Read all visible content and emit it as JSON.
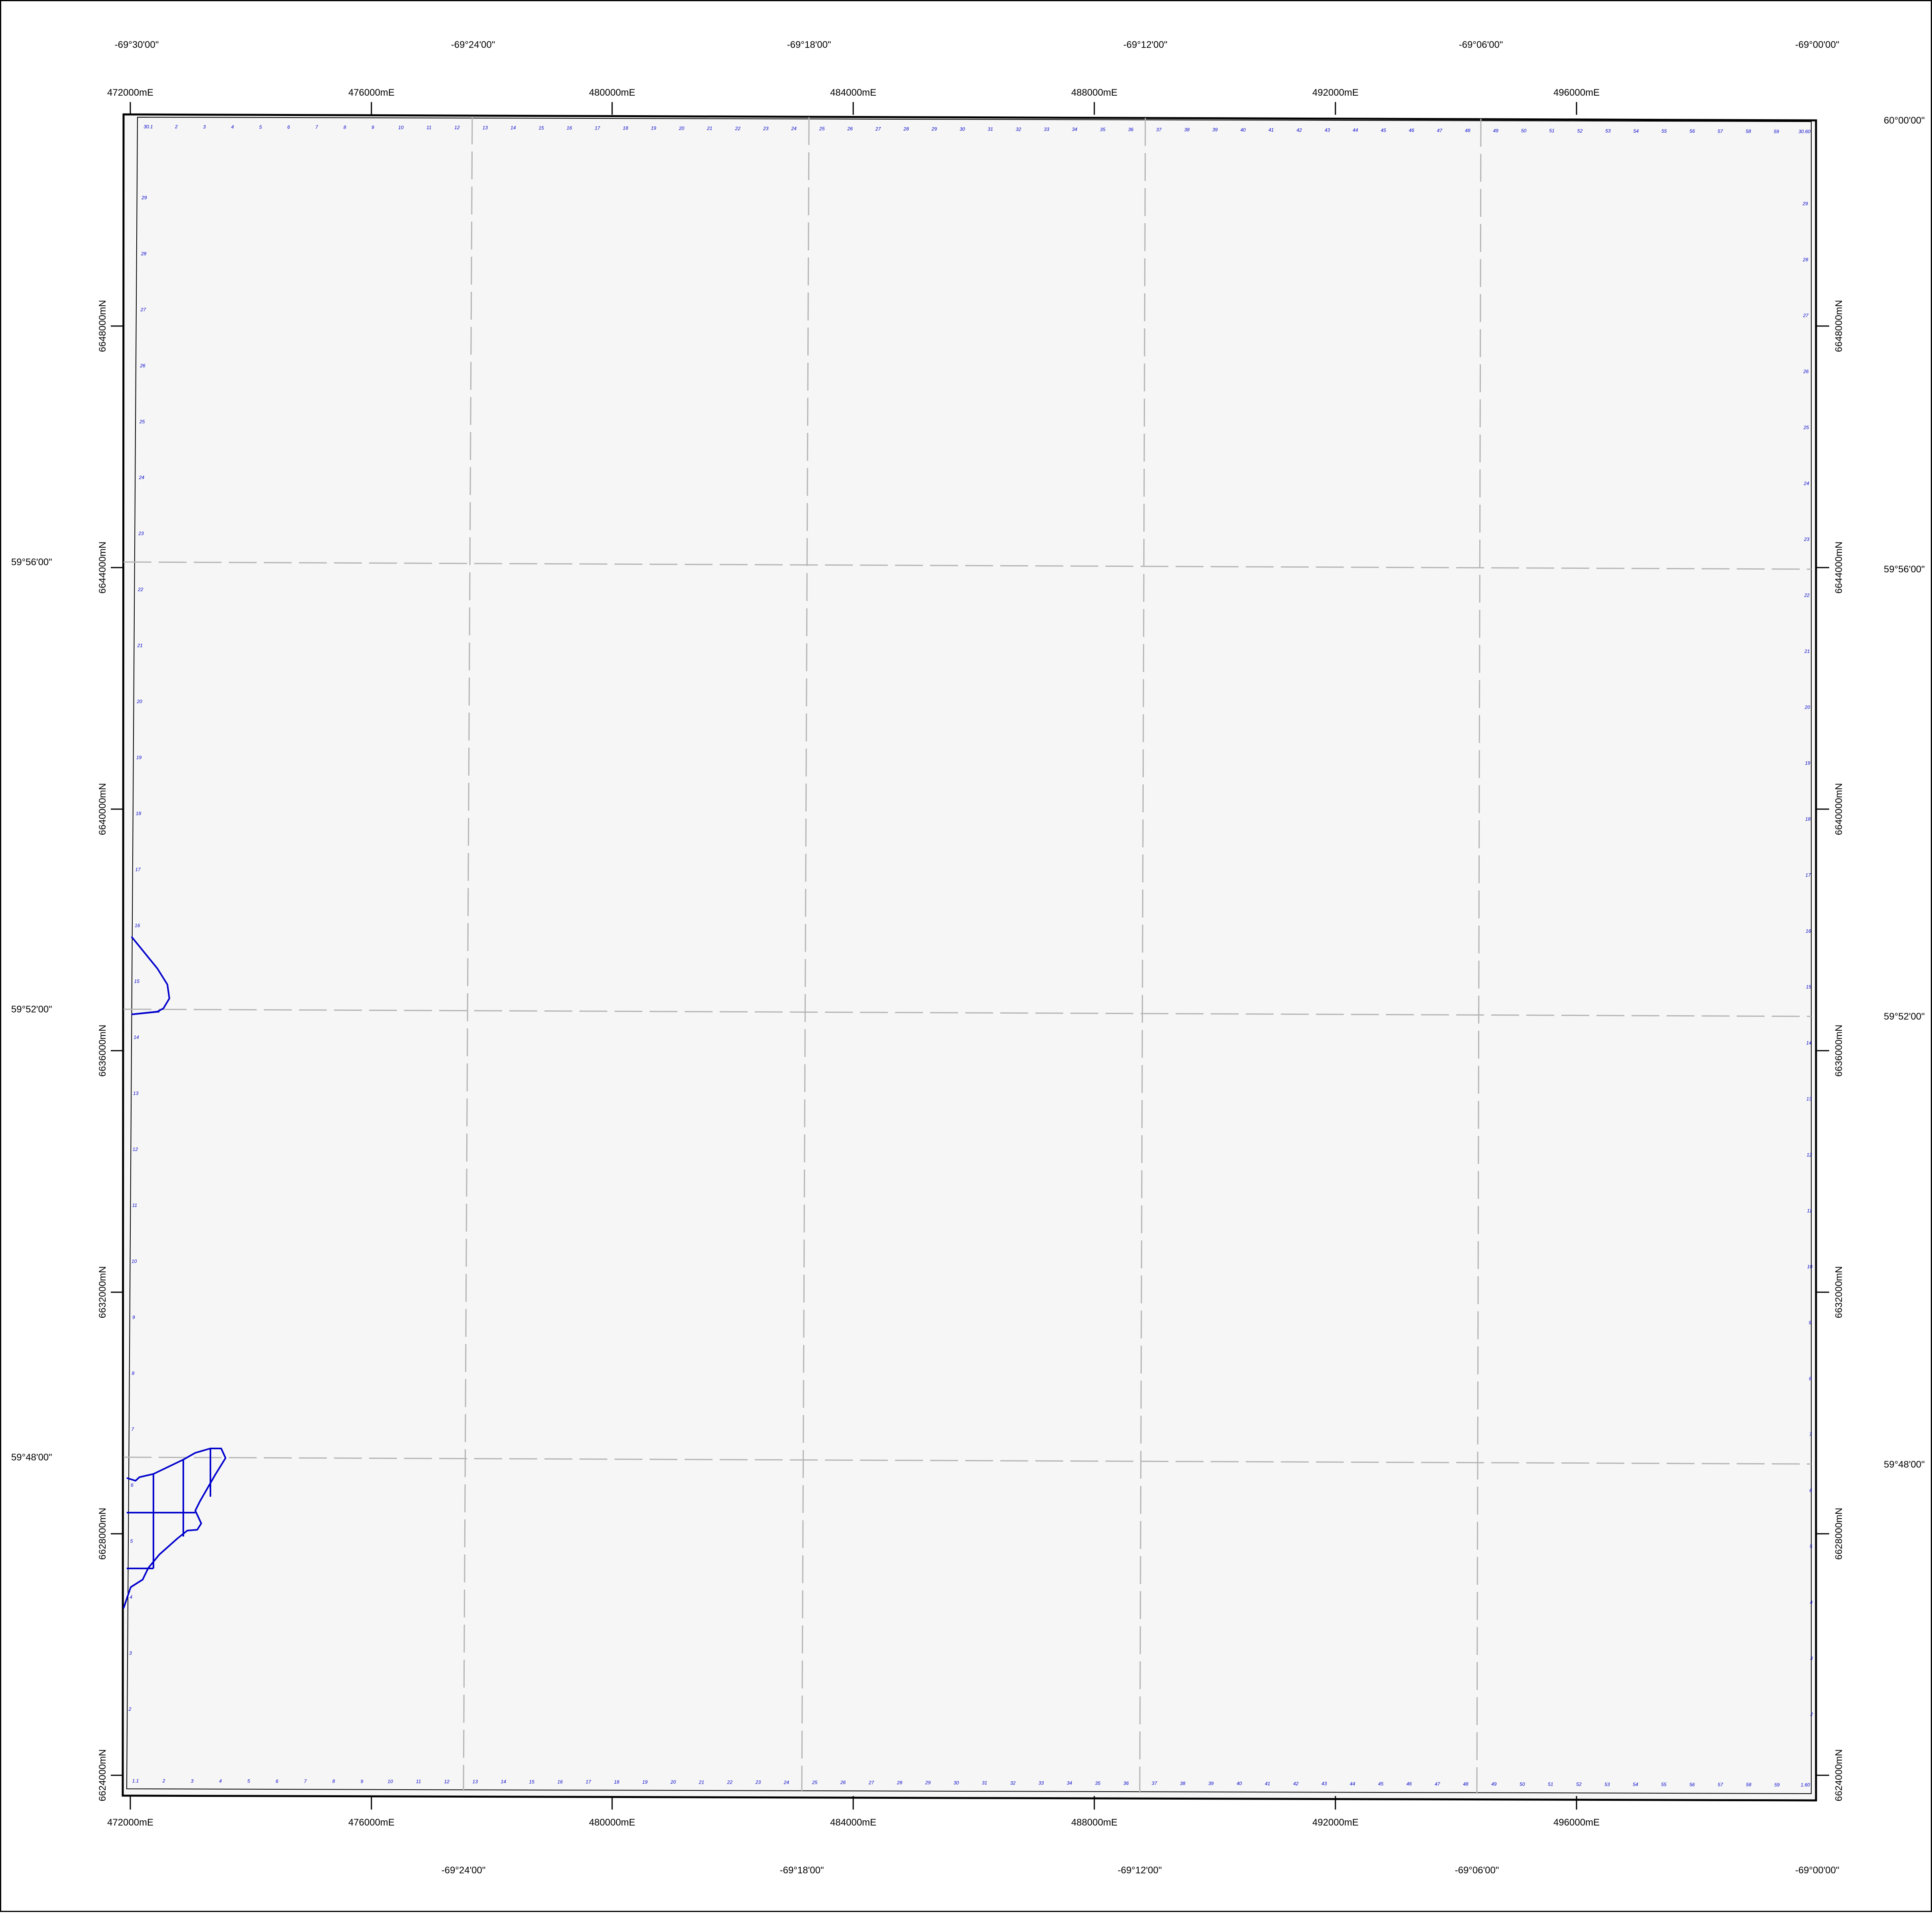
{
  "map": {
    "colors": {
      "background": "#ffffff",
      "map_fill": "#f6f6f6",
      "frame": "#000000",
      "graticule": "#b4b4b4",
      "cell_labels": "#0000cc",
      "features": "#0000cc"
    },
    "top_longitude_labels": [
      "-69°30'00\"",
      "-69°24'00\"",
      "-69°18'00\"",
      "-69°12'00\"",
      "-69°06'00\"",
      "-69°00'00\""
    ],
    "bottom_longitude_labels": [
      "-69°24'00\"",
      "-69°18'00\"",
      "-69°12'00\"",
      "-69°06'00\"",
      "-69°00'00\""
    ],
    "easting_labels": [
      "472000mE",
      "476000mE",
      "480000mE",
      "484000mE",
      "488000mE",
      "492000mE",
      "496000mE"
    ],
    "northing_labels": [
      "6648000mN",
      "6644000mN",
      "6640000mN",
      "6636000mN",
      "6632000mN",
      "6628000mN",
      "6624000mN"
    ],
    "left_latitude_labels": [
      "59°56'00\"",
      "59°52'00\"",
      "59°48'00\""
    ],
    "right_latitude_labels": [
      "60°00'00\"",
      "59°56'00\"",
      "59°52'00\"",
      "59°48'00\""
    ],
    "top_cell_numbers": [
      "30.1",
      "2",
      "3",
      "4",
      "5",
      "6",
      "7",
      "8",
      "9",
      "10",
      "11",
      "12",
      "13",
      "14",
      "15",
      "16",
      "17",
      "18",
      "19",
      "20",
      "21",
      "22",
      "23",
      "24",
      "25",
      "26",
      "27",
      "28",
      "29",
      "30",
      "31",
      "32",
      "33",
      "34",
      "35",
      "36",
      "37",
      "38",
      "39",
      "40",
      "41",
      "42",
      "43",
      "44",
      "45",
      "46",
      "47",
      "48",
      "49",
      "50",
      "51",
      "52",
      "53",
      "54",
      "55",
      "56",
      "57",
      "58",
      "59",
      "30.60"
    ],
    "bottom_cell_numbers": [
      "1.1",
      "2",
      "3",
      "4",
      "5",
      "6",
      "7",
      "8",
      "9",
      "10",
      "11",
      "12",
      "13",
      "14",
      "15",
      "16",
      "17",
      "18",
      "19",
      "20",
      "21",
      "22",
      "23",
      "24",
      "25",
      "26",
      "27",
      "28",
      "29",
      "30",
      "31",
      "32",
      "33",
      "34",
      "35",
      "36",
      "37",
      "38",
      "39",
      "40",
      "41",
      "42",
      "43",
      "44",
      "45",
      "46",
      "47",
      "48",
      "49",
      "50",
      "51",
      "52",
      "53",
      "54",
      "55",
      "56",
      "57",
      "58",
      "59",
      "1.60"
    ],
    "side_cell_numbers": [
      "29",
      "28",
      "27",
      "26",
      "25",
      "24",
      "23",
      "22",
      "21",
      "20",
      "19",
      "18",
      "17",
      "16",
      "15",
      "14",
      "13",
      "12",
      "11",
      "10",
      "9",
      "8",
      "7",
      "6",
      "5",
      "4",
      "3",
      "2"
    ]
  }
}
